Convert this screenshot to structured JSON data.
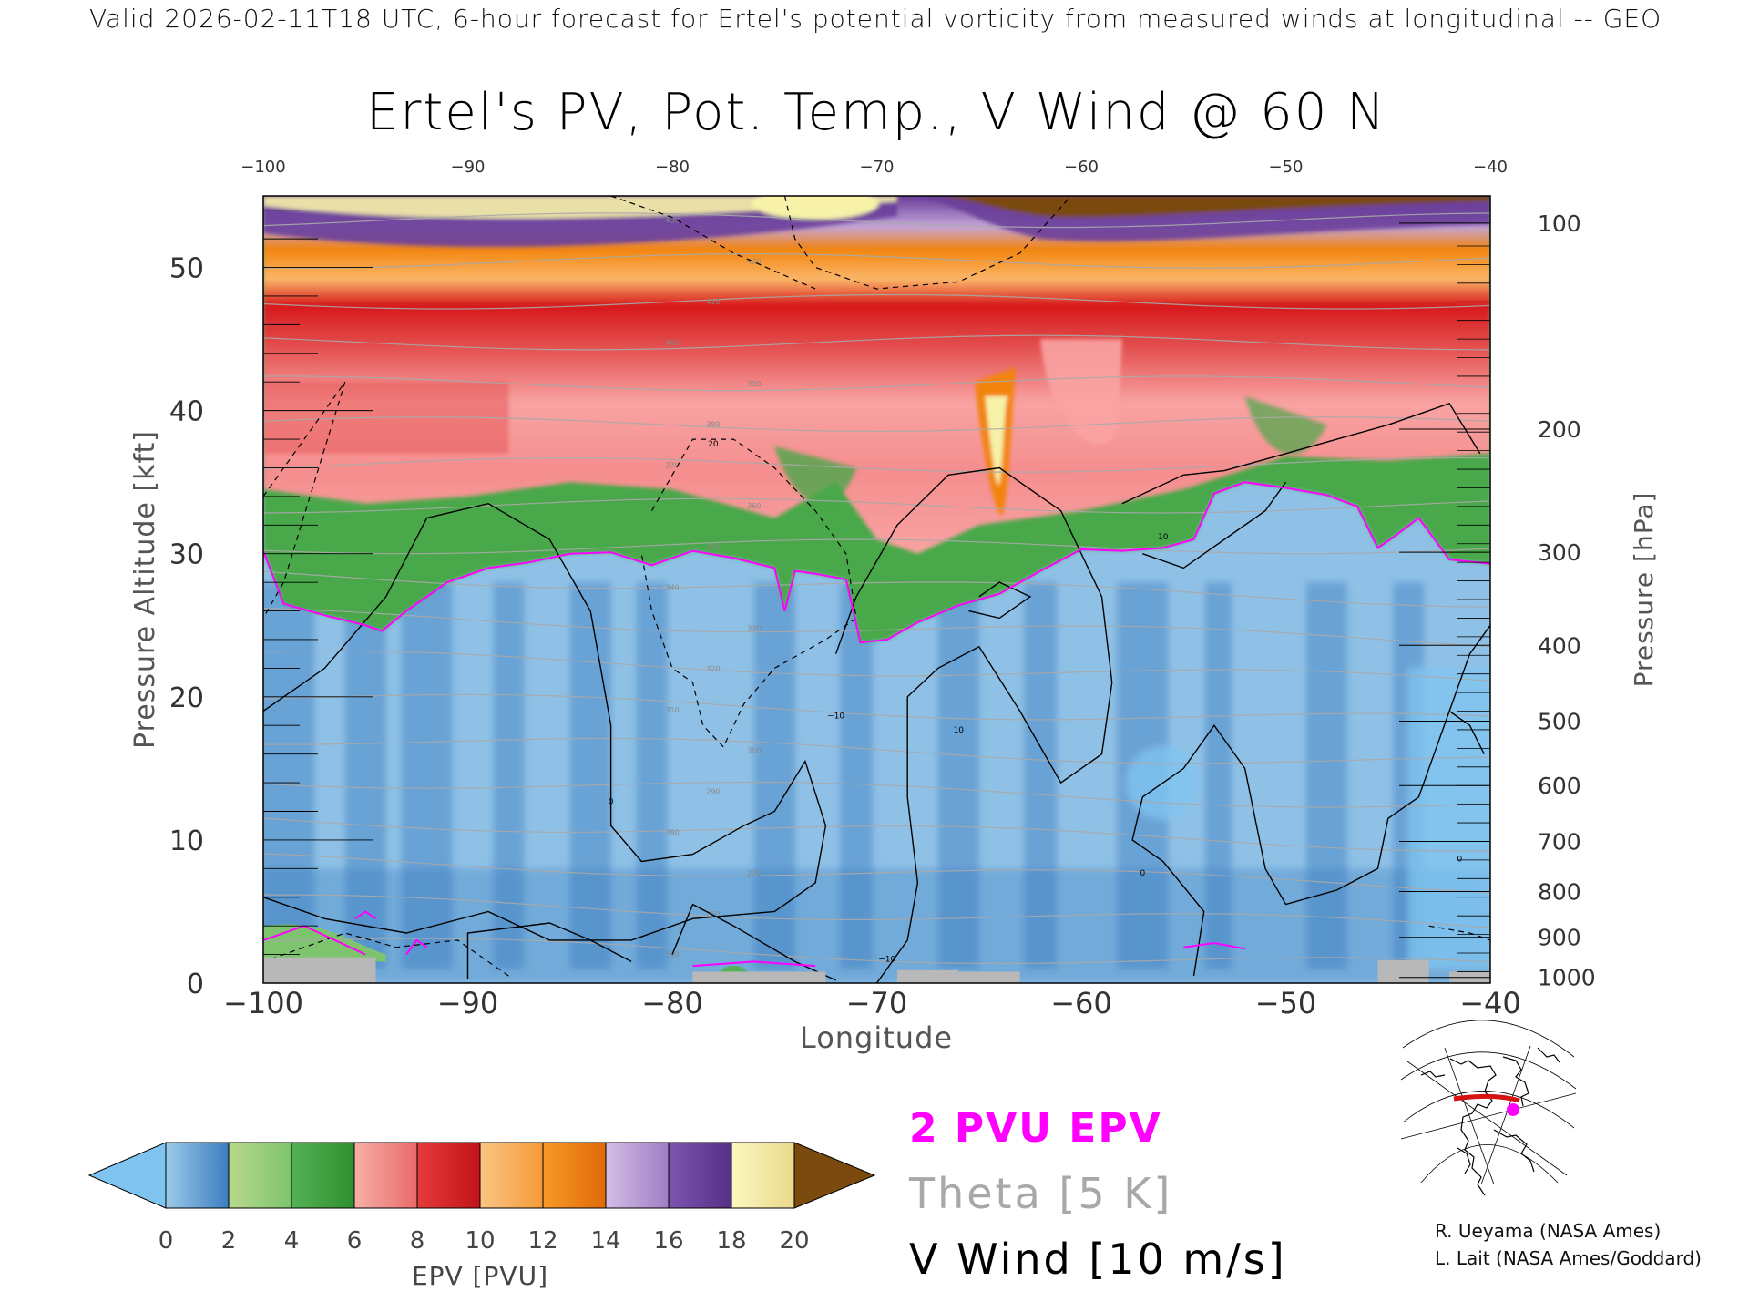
{
  "header": {
    "text": "Valid 2026-02-11T18 UTC, 6-hour forecast for Ertel's potential vorticity from measured winds at longitudinal -- GEO"
  },
  "chart_data": {
    "type": "heatmap",
    "title": "Ertel's PV, Pot. Temp., V Wind @ 60 N",
    "xlabel": "Longitude",
    "ylabel_left": "Pressure Altitude [kft]",
    "ylabel_right": "Pressure [hPa]",
    "xlim": [
      -100,
      -40
    ],
    "ylim": [
      0,
      55
    ],
    "x_ticks": [
      -100,
      -90,
      -80,
      -70,
      -60,
      -50,
      -40
    ],
    "x_tick_labels": [
      "−100",
      "−90",
      "−80",
      "−70",
      "−60",
      "−50",
      "−40"
    ],
    "top_tick_labels": [
      "−100",
      "−90",
      "−80",
      "−70",
      "−60",
      "−50",
      "−40"
    ],
    "y_ticks_left": [
      0,
      10,
      20,
      30,
      40,
      50
    ],
    "y_ticks_right": [
      {
        "label": "100",
        "kft": 53.1
      },
      {
        "label": "200",
        "kft": 38.7
      },
      {
        "label": "300",
        "kft": 30.1
      },
      {
        "label": "400",
        "kft": 23.6
      },
      {
        "label": "500",
        "kft": 18.3
      },
      {
        "label": "600",
        "kft": 13.8
      },
      {
        "label": "700",
        "kft": 9.9
      },
      {
        "label": "800",
        "kft": 6.4
      },
      {
        "label": "900",
        "kft": 3.2
      },
      {
        "label": "1000",
        "kft": 0.4
      }
    ],
    "epv_2pvu_boundary": [
      [
        -100,
        30.2
      ],
      [
        -99,
        26.5
      ],
      [
        -97,
        25.7
      ],
      [
        -95,
        25
      ],
      [
        -94.2,
        24.6
      ],
      [
        -93,
        26
      ],
      [
        -91,
        28
      ],
      [
        -89,
        29
      ],
      [
        -87,
        29.4
      ],
      [
        -85,
        30
      ],
      [
        -83,
        30.1
      ],
      [
        -81,
        29.2
      ],
      [
        -79,
        30.2
      ],
      [
        -77,
        29.7
      ],
      [
        -75,
        29
      ],
      [
        -74.5,
        26
      ],
      [
        -74,
        28.8
      ],
      [
        -73,
        28.6
      ],
      [
        -71.5,
        28.2
      ],
      [
        -70.8,
        23.8
      ],
      [
        -69.5,
        24
      ],
      [
        -68,
        25.2
      ],
      [
        -66,
        26.4
      ],
      [
        -64,
        27.2
      ],
      [
        -62,
        28.8
      ],
      [
        -60,
        30.3
      ],
      [
        -58,
        30.2
      ],
      [
        -56,
        30.4
      ],
      [
        -54.5,
        31
      ],
      [
        -53.5,
        34.2
      ],
      [
        -52,
        35
      ],
      [
        -50,
        34.6
      ],
      [
        -48,
        34.1
      ],
      [
        -46.5,
        33.3
      ],
      [
        -45.5,
        30.4
      ],
      [
        -44.7,
        31.2
      ],
      [
        -43.5,
        32.5
      ],
      [
        -42,
        29.6
      ],
      [
        -40,
        29.3
      ]
    ],
    "tropopause_epv_pvu": [
      [
        -100,
        34.5
      ],
      [
        -95,
        33.5
      ],
      [
        -90,
        34
      ],
      [
        -85,
        35
      ],
      [
        -80,
        34.5
      ],
      [
        -75,
        32.5
      ],
      [
        -72,
        35
      ],
      [
        -70,
        31
      ],
      [
        -68,
        30
      ],
      [
        -65,
        32
      ],
      [
        -60,
        33
      ],
      [
        -55,
        34.5
      ],
      [
        -50,
        36.8
      ],
      [
        -45,
        36.5
      ],
      [
        -40,
        37
      ]
    ],
    "theta_labels": [
      "250",
      "260",
      "270",
      "280",
      "290",
      "300",
      "310",
      "320",
      "330",
      "340",
      "350",
      "360",
      "370",
      "380",
      "390",
      "400",
      "410",
      "420",
      "430"
    ],
    "vwind_contour_labels": [
      "0",
      "10",
      "−10",
      "20"
    ],
    "surface_blocks": [
      [
        -100,
        -94.5,
        1.8
      ],
      [
        -79,
        -72.5,
        0.8
      ],
      [
        -69,
        -66,
        0.9
      ],
      [
        -66,
        -63,
        0.8
      ],
      [
        -45.5,
        -43,
        1.6
      ],
      [
        -42,
        -40,
        0.8
      ]
    ],
    "colorbar": {
      "title": "EPV [PVU]",
      "ticks": [
        "0",
        "2",
        "4",
        "6",
        "8",
        "10",
        "12",
        "14",
        "16",
        "18",
        "20"
      ],
      "under_color": "#7fc4f0",
      "over_color": "#7a4a0e",
      "colors": [
        "#8fc1e6",
        "#3b7dbf",
        "#c0dc8f",
        "#3aa13a",
        "#f9a3a3",
        "#d7191c",
        "#fbb769",
        "#f2840d",
        "#c3a6d8",
        "#6a3d9a",
        "#f7f2a8",
        "#7a4a0e"
      ]
    },
    "legend": [
      {
        "label": "2 PVU EPV",
        "color": "#ff00ff"
      },
      {
        "label": "Theta [5 K]",
        "color": "#a8a8a8"
      },
      {
        "label": "V Wind [10 m/s]",
        "color": "#000000"
      }
    ]
  },
  "credits": [
    "R. Ueyama (NASA Ames)",
    "L. Lait (NASA Ames/Goddard)"
  ]
}
